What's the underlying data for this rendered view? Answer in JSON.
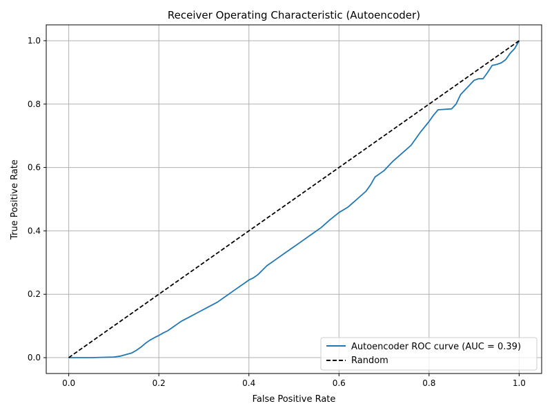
{
  "chart_data": {
    "type": "line",
    "title": "Receiver Operating Characteristic (Autoencoder)",
    "xlabel": "False Positive Rate",
    "ylabel": "True Positive Rate",
    "xlim": [
      -0.05,
      1.05
    ],
    "ylim": [
      -0.05,
      1.05
    ],
    "xticks": [
      0.0,
      0.2,
      0.4,
      0.6,
      0.8,
      1.0
    ],
    "yticks": [
      0.0,
      0.2,
      0.4,
      0.6,
      0.8,
      1.0
    ],
    "xtick_labels": [
      "0.0",
      "0.2",
      "0.4",
      "0.6",
      "0.8",
      "1.0"
    ],
    "ytick_labels": [
      "0.0",
      "0.2",
      "0.4",
      "0.6",
      "0.8",
      "1.0"
    ],
    "grid": true,
    "legend_position": "lower-right",
    "series": [
      {
        "name": "Autoencoder ROC curve (AUC = 0.39)",
        "color": "#1f77b4",
        "style": "solid",
        "x": [
          0.0,
          0.05,
          0.1,
          0.115,
          0.13,
          0.14,
          0.15,
          0.16,
          0.17,
          0.18,
          0.19,
          0.2,
          0.21,
          0.22,
          0.24,
          0.25,
          0.27,
          0.29,
          0.31,
          0.33,
          0.35,
          0.37,
          0.39,
          0.4,
          0.41,
          0.42,
          0.44,
          0.46,
          0.48,
          0.5,
          0.52,
          0.54,
          0.56,
          0.58,
          0.6,
          0.62,
          0.64,
          0.66,
          0.67,
          0.68,
          0.7,
          0.72,
          0.74,
          0.76,
          0.78,
          0.8,
          0.81,
          0.82,
          0.85,
          0.86,
          0.87,
          0.88,
          0.89,
          0.9,
          0.91,
          0.92,
          0.93,
          0.94,
          0.95,
          0.96,
          0.97,
          0.98,
          0.99,
          1.0
        ],
        "y": [
          0.0,
          0.0,
          0.002,
          0.005,
          0.011,
          0.015,
          0.023,
          0.033,
          0.045,
          0.055,
          0.063,
          0.07,
          0.078,
          0.085,
          0.105,
          0.115,
          0.13,
          0.145,
          0.16,
          0.175,
          0.195,
          0.215,
          0.235,
          0.245,
          0.252,
          0.262,
          0.29,
          0.31,
          0.33,
          0.35,
          0.37,
          0.39,
          0.41,
          0.435,
          0.458,
          0.475,
          0.5,
          0.525,
          0.545,
          0.57,
          0.59,
          0.62,
          0.645,
          0.67,
          0.71,
          0.745,
          0.765,
          0.782,
          0.785,
          0.8,
          0.83,
          0.845,
          0.86,
          0.875,
          0.88,
          0.88,
          0.9,
          0.922,
          0.925,
          0.93,
          0.94,
          0.96,
          0.975,
          1.0
        ]
      },
      {
        "name": "Random",
        "color": "#000000",
        "style": "dashed",
        "x": [
          0.0,
          1.0
        ],
        "y": [
          0.0,
          1.0
        ]
      }
    ]
  }
}
